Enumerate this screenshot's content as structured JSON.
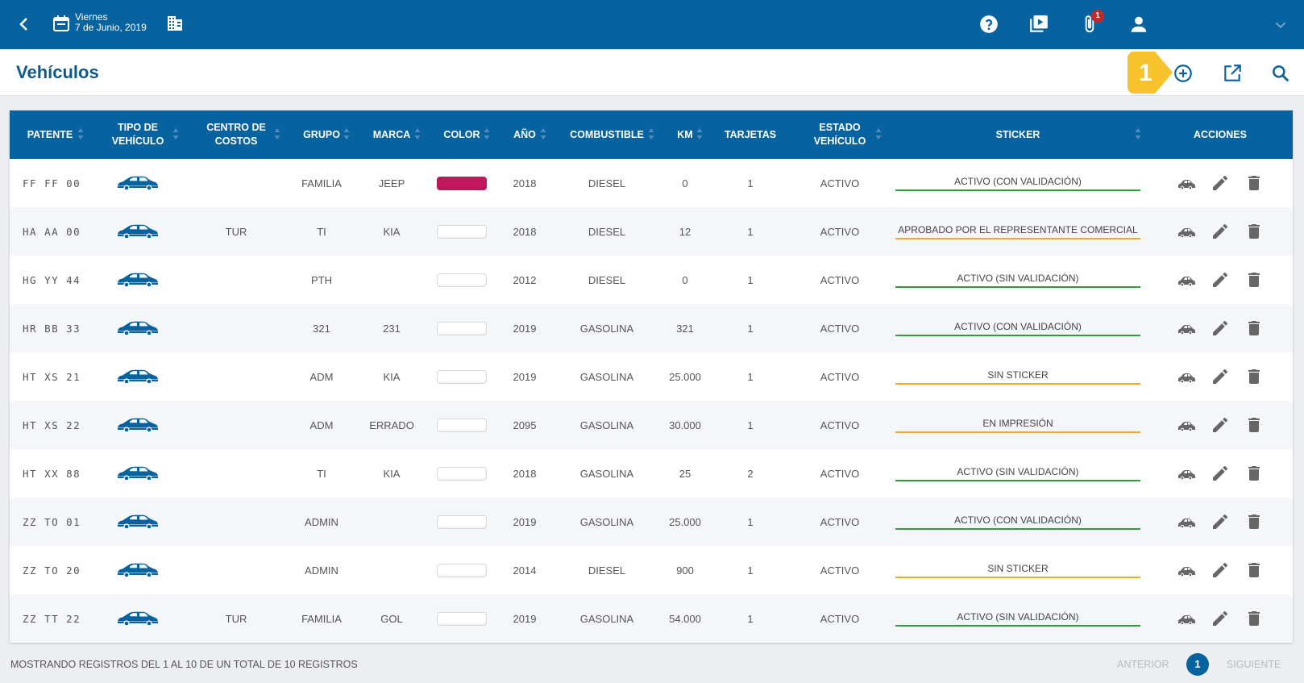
{
  "header": {
    "date_day": "Viernes",
    "date_full": "7 de Junio, 2019",
    "notification_count": "1"
  },
  "page": {
    "title": "Vehículos",
    "step_number": "1"
  },
  "table": {
    "columns": [
      "PATENTE",
      "TIPO DE VEHÍCULO",
      "CENTRO DE COSTOS",
      "GRUPO",
      "MARCA",
      "COLOR",
      "AÑO",
      "COMBUSTIBLE",
      "KM",
      "TARJETAS",
      "ESTADO VEHÍCULO",
      "STICKER",
      "ACCIONES"
    ],
    "rows": [
      {
        "patente": "FF FF 00",
        "centro": "",
        "grupo": "FAMILIA",
        "marca": "JEEP",
        "color": "#c2185b",
        "anio": "2018",
        "combustible": "DIESEL",
        "km": "0",
        "tarjetas": "1",
        "estado": "ACTIVO",
        "sticker": "ACTIVO (CON VALIDACIÓN)",
        "sticker_color": "green"
      },
      {
        "patente": "HA AA 00",
        "centro": "TUR",
        "grupo": "TI",
        "marca": "KIA",
        "color": "#ffffff",
        "anio": "2018",
        "combustible": "DIESEL",
        "km": "12",
        "tarjetas": "1",
        "estado": "ACTIVO",
        "sticker": "APROBADO POR EL REPRESENTANTE COMERCIAL",
        "sticker_color": "orange"
      },
      {
        "patente": "HG YY 44",
        "centro": "",
        "grupo": "PTH",
        "marca": "",
        "color": "#ffffff",
        "anio": "2012",
        "combustible": "DIESEL",
        "km": "0",
        "tarjetas": "1",
        "estado": "ACTIVO",
        "sticker": "ACTIVO (SIN VALIDACIÓN)",
        "sticker_color": "green"
      },
      {
        "patente": "HR BB 33",
        "centro": "",
        "grupo": "321",
        "marca": "231",
        "color": "#ffffff",
        "anio": "2019",
        "combustible": "GASOLINA",
        "km": "321",
        "tarjetas": "1",
        "estado": "ACTIVO",
        "sticker": "ACTIVO (CON VALIDACIÓN)",
        "sticker_color": "green"
      },
      {
        "patente": "HT XS 21",
        "centro": "",
        "grupo": "ADM",
        "marca": "KIA",
        "color": "#ffffff",
        "anio": "2019",
        "combustible": "GASOLINA",
        "km": "25.000",
        "tarjetas": "1",
        "estado": "ACTIVO",
        "sticker": "SIN STICKER",
        "sticker_color": "orange"
      },
      {
        "patente": "HT XS 22",
        "centro": "",
        "grupo": "ADM",
        "marca": "ERRADO",
        "color": "#ffffff",
        "anio": "2095",
        "combustible": "GASOLINA",
        "km": "30.000",
        "tarjetas": "1",
        "estado": "ACTIVO",
        "sticker": "EN IMPRESIÓN",
        "sticker_color": "orange"
      },
      {
        "patente": "HT XX 88",
        "centro": "",
        "grupo": "TI",
        "marca": "KIA",
        "color": "#ffffff",
        "anio": "2018",
        "combustible": "GASOLINA",
        "km": "25",
        "tarjetas": "2",
        "estado": "ACTIVO",
        "sticker": "ACTIVO (SIN VALIDACIÓN)",
        "sticker_color": "green"
      },
      {
        "patente": "ZZ TO 01",
        "centro": "",
        "grupo": "ADMIN",
        "marca": "",
        "color": "#ffffff",
        "anio": "2019",
        "combustible": "GASOLINA",
        "km": "25.000",
        "tarjetas": "1",
        "estado": "ACTIVO",
        "sticker": "ACTIVO (CON VALIDACIÓN)",
        "sticker_color": "green"
      },
      {
        "patente": "ZZ TO 20",
        "centro": "",
        "grupo": "ADMIN",
        "marca": "",
        "color": "#ffffff",
        "anio": "2014",
        "combustible": "DIESEL",
        "km": "900",
        "tarjetas": "1",
        "estado": "ACTIVO",
        "sticker": "SIN STICKER",
        "sticker_color": "orange"
      },
      {
        "patente": "ZZ TT 22",
        "centro": "TUR",
        "grupo": "FAMILIA",
        "marca": "GOL",
        "color": "#ffffff",
        "anio": "2019",
        "combustible": "GASOLINA",
        "km": "54.000",
        "tarjetas": "1",
        "estado": "ACTIVO",
        "sticker": "ACTIVO (SIN VALIDACIÓN)",
        "sticker_color": "green"
      }
    ]
  },
  "footer": {
    "summary": "MOSTRANDO REGISTROS DEL 1 AL 10 DE UN TOTAL DE 10 REGISTROS",
    "prev_label": "ANTERIOR",
    "page_number": "1",
    "next_label": "SIGUIENTE"
  },
  "colors": {
    "primary": "#0663a0",
    "title": "#0d5a8c",
    "sticker_green": "#2e9c3b",
    "sticker_orange": "#f5a623",
    "step_badge": "#f7c22b"
  },
  "icons": {
    "header": [
      "chevron-left-icon",
      "calendar-icon",
      "building-icon",
      "help-icon",
      "video-icon",
      "paperclip-icon",
      "user-icon",
      "chevron-down-icon"
    ],
    "title_actions": [
      "add-circle-icon",
      "open-external-icon",
      "search-icon"
    ],
    "row_actions": [
      "car-cards-icon",
      "edit-pencil-icon",
      "trash-icon"
    ]
  }
}
